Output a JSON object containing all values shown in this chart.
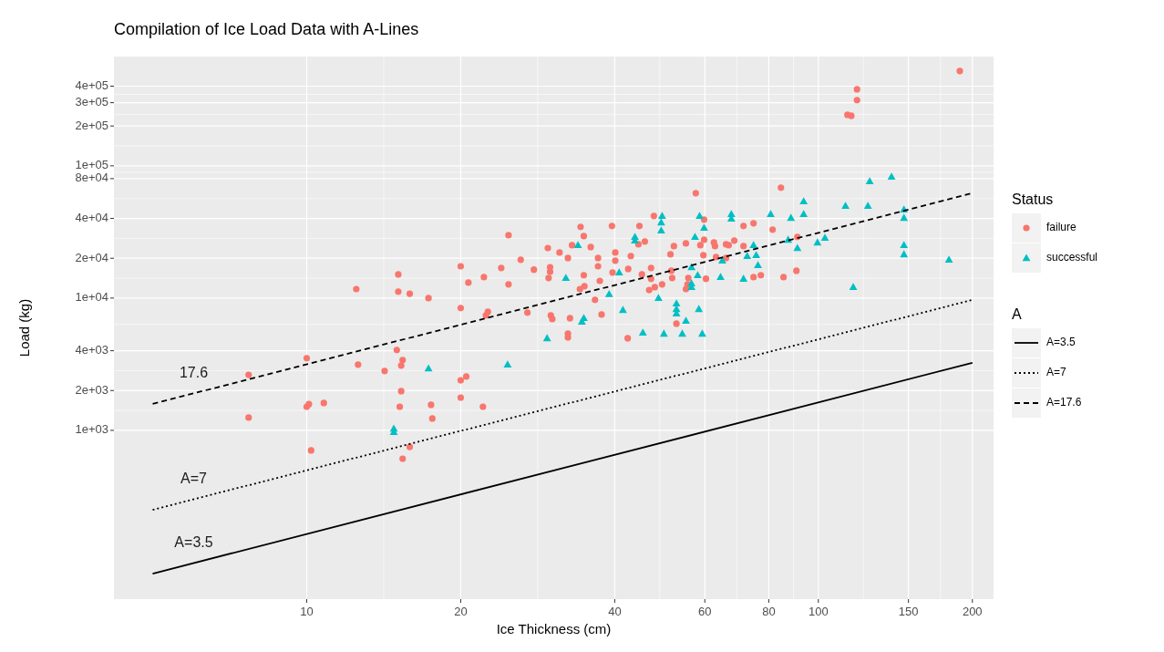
{
  "chart_data": {
    "type": "scatter",
    "title": "Compilation of Ice Load Data with A-Lines",
    "xlabel": "Ice Thickness (cm)",
    "ylabel": "Load (kg)",
    "legend_title": [
      "Status",
      "A"
    ],
    "log": "xy",
    "grid": true,
    "legend": "right",
    "xlim": [
      4.2,
      220
    ],
    "ylim": [
      53,
      670000
    ],
    "xticks": [
      10,
      20,
      40,
      60,
      80,
      100,
      150,
      200
    ],
    "yticks": [
      {
        "value": 1000,
        "label": "1e+03"
      },
      {
        "value": 2000,
        "label": "2e+03"
      },
      {
        "value": 4000,
        "label": "4e+03"
      },
      {
        "value": 10000,
        "label": "1e+04"
      },
      {
        "value": 20000,
        "label": "2e+04"
      },
      {
        "value": 40000,
        "label": "4e+04"
      },
      {
        "value": 80000,
        "label": "8e+04"
      },
      {
        "value": 100000,
        "label": "1e+05"
      },
      {
        "value": 200000,
        "label": "2e+05"
      },
      {
        "value": 300000,
        "label": "3e+05"
      },
      {
        "value": 400000,
        "label": "4e+05"
      }
    ],
    "annotations": [
      "17.6",
      "A=7",
      "A=3.5"
    ],
    "series": [
      {
        "name": "failure",
        "marker": "circle",
        "color": "#f8766d",
        "x": [
          7.7,
          7.7,
          10,
          10,
          10.1,
          10.8,
          10.2,
          12.5,
          15.1,
          15.1,
          15.9,
          17.3,
          15.0,
          15.4,
          15.3,
          12.6,
          14.2,
          15.3,
          15.2,
          17.5,
          17.6,
          15.9,
          15.4,
          20.0,
          20.0,
          20.0,
          20.0,
          20.5,
          22.1,
          20.7,
          22.2,
          24.0,
          24.8,
          24.8,
          22.6,
          22.4,
          26.2,
          27.0,
          27.8,
          29.6,
          29.9,
          29.9,
          29.7,
          30.0,
          30.2,
          31.2,
          32.4,
          33.0,
          32.7,
          32.4,
          32.4,
          34.3,
          34.8,
          35.9,
          34.8,
          34.9,
          34.2,
          36.6,
          37.1,
          37.1,
          37.4,
          37.7,
          39.5,
          40.1,
          40.1,
          39.6,
          43.0,
          42.5,
          42.4,
          44.7,
          44.5,
          45.8,
          45.2,
          47.1,
          47.1,
          47.9,
          46.7,
          49.5,
          47.7,
          51.4,
          52.2,
          51.8,
          51.6,
          55.1,
          55.7,
          55.5,
          55.1,
          52.8,
          57.6,
          58.8,
          59.8,
          59.8,
          62.5,
          62.8,
          60.3,
          59.6,
          66.0,
          66.0,
          119,
          119,
          114,
          116,
          189,
          84.5,
          71.4,
          74.7,
          81.4,
          68.5,
          66.8,
          71.4,
          91.0,
          63.1,
          74.7,
          77.2,
          85.5,
          90.6
        ],
        "values": [
          2630,
          1250,
          3510,
          1510,
          1580,
          1610,
          705,
          11700,
          15100,
          11200,
          10800,
          10000,
          4050,
          3400,
          3090,
          3140,
          2810,
          1980,
          1510,
          1560,
          1230,
          750,
          611,
          17400,
          8400,
          2390,
          1770,
          2550,
          1510,
          13100,
          14400,
          16900,
          29900,
          12700,
          7880,
          7390,
          19500,
          7760,
          16400,
          23900,
          17100,
          15800,
          14200,
          7390,
          6940,
          22100,
          20100,
          25100,
          7050,
          5380,
          5050,
          34500,
          29400,
          24300,
          14900,
          12300,
          11700,
          9690,
          20100,
          17400,
          13500,
          7510,
          35100,
          22100,
          19200,
          15600,
          20800,
          16600,
          4970,
          35100,
          25500,
          26800,
          15100,
          16900,
          14000,
          12100,
          11500,
          12700,
          41800,
          21400,
          24700,
          14200,
          16100,
          25900,
          14200,
          12700,
          11700,
          6410,
          62100,
          25100,
          27600,
          39200,
          26300,
          24700,
          14000,
          21100,
          25500,
          20100,
          379000,
          314000,
          243000,
          239000,
          521000,
          68300,
          35100,
          36800,
          32900,
          27200,
          25100,
          24700,
          29000,
          20400,
          14400,
          14900,
          14400,
          16100
        ]
      },
      {
        "name": "successful",
        "marker": "triangle",
        "color": "#00bfc4",
        "x": [
          17.3,
          14.8,
          14.8,
          33.9,
          32.1,
          29.5,
          24.7,
          34.8,
          34.5,
          39.0,
          40.8,
          41.5,
          45.4,
          43.8,
          43.8,
          49.5,
          49.3,
          49.3,
          48.7,
          49.9,
          52.8,
          52.8,
          52.8,
          55.1,
          54.2,
          57.4,
          56.5,
          56.5,
          56.5,
          58.1,
          58.4,
          59.3,
          58.6,
          59.8,
          64.4,
          64.9,
          67.6,
          67.6,
          80.7,
          88.4,
          93.6,
          93.6,
          113,
          125,
          126,
          139,
          147,
          147,
          147,
          147,
          180,
          117,
          99.6,
          103,
          91.0,
          87.3,
          74.7,
          72.6,
          75.6,
          76.2,
          71.4
        ],
        "values": [
          2940,
          1030,
          970,
          25100,
          14200,
          4970,
          3140,
          7050,
          6620,
          10700,
          15600,
          8130,
          5470,
          29000,
          27200,
          41800,
          37300,
          32400,
          10000,
          5380,
          9100,
          8260,
          7640,
          6730,
          5380,
          29000,
          17100,
          12900,
          12100,
          14900,
          8260,
          5380,
          41800,
          34000,
          14400,
          19200,
          43100,
          39800,
          43100,
          40400,
          53800,
          43100,
          49700,
          49700,
          76400,
          82600,
          46700,
          40400,
          25100,
          21400,
          19500,
          12100,
          26300,
          28500,
          23900,
          27600,
          25100,
          20800,
          21100,
          17700,
          14000
        ]
      },
      {
        "name": "A=3.5",
        "type": "line",
        "line_style": "solid",
        "color": "#000000",
        "x": [
          5,
          200
        ],
        "values": [
          82.6,
          3240
        ]
      },
      {
        "name": "A=7",
        "type": "line",
        "line_style": "dotted",
        "color": "#000000",
        "x": [
          5,
          200
        ],
        "values": [
          251,
          9690
        ]
      },
      {
        "name": "A=17.6",
        "type": "line",
        "line_style": "dashed",
        "color": "#000000",
        "x": [
          5,
          200
        ],
        "values": [
          1585,
          62100
        ]
      }
    ]
  }
}
